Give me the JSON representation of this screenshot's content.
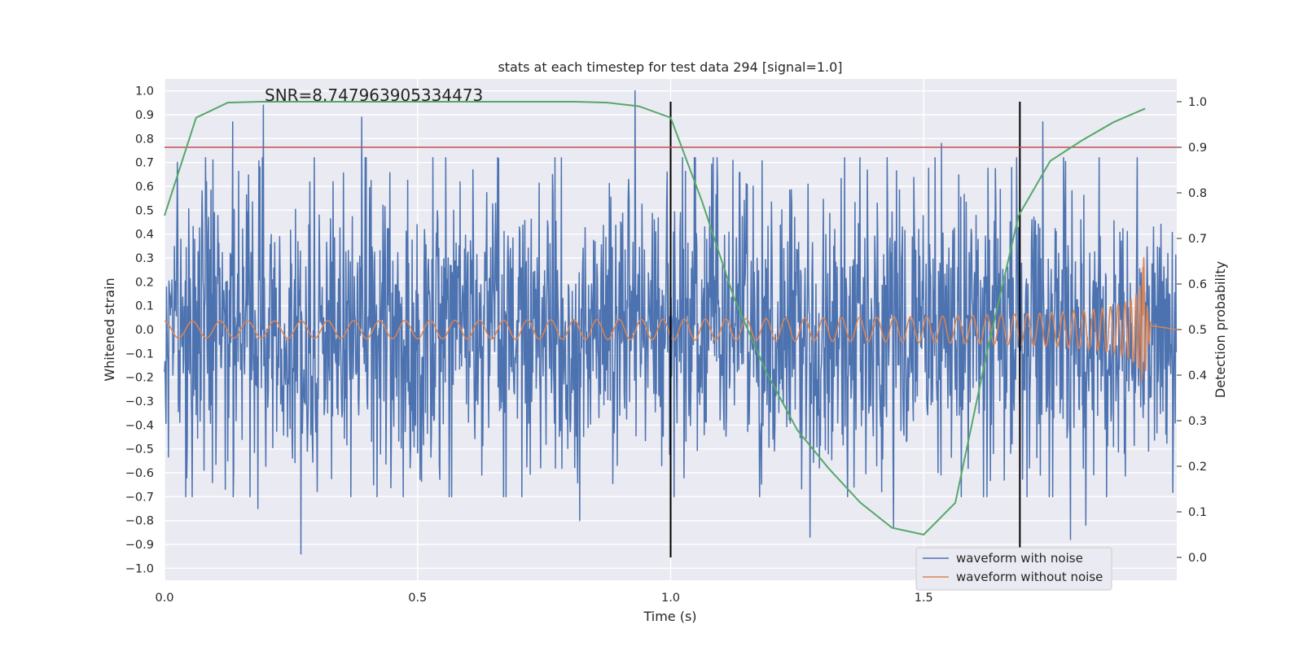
{
  "chart_data": {
    "type": "line",
    "title": "stats at each timestep for test data 294 [signal=1.0]",
    "annotation": "SNR=8.747963905334473",
    "xlabel": "Time (s)",
    "ylabel_left": "Whitened strain",
    "ylabel_right": "Detection probability",
    "xlim": [
      0.0,
      2.0
    ],
    "ylim_left": [
      -1.05,
      1.05
    ],
    "ylim_right": [
      -0.05,
      1.05
    ],
    "x_ticks": [
      "0.0",
      "0.5",
      "1.0",
      "1.5"
    ],
    "y_ticks_left": [
      "1.0",
      "0.9",
      "0.8",
      "0.7",
      "0.6",
      "0.5",
      "0.4",
      "0.3",
      "0.2",
      "0.1",
      "0.0",
      "−0.1",
      "−0.2",
      "−0.3",
      "−0.4",
      "−0.5",
      "−0.6",
      "−0.7",
      "−0.8",
      "−0.9",
      "−1.0"
    ],
    "y_ticks_right": [
      "1.0",
      "0.9",
      "0.8",
      "0.7",
      "0.6",
      "0.5",
      "0.4",
      "0.3",
      "0.2",
      "0.1",
      "0.0"
    ],
    "grid": true,
    "legend_position": "bottom-right",
    "threshold_line": {
      "axis": "right",
      "value": 0.9,
      "color": "#c44e52"
    },
    "vertical_lines": [
      {
        "x": 1.0,
        "color": "#000000"
      },
      {
        "x": 1.69,
        "color": "#000000"
      }
    ],
    "series": [
      {
        "name": "waveform with noise",
        "axis": "left",
        "color": "#4c72b0",
        "kind": "noise",
        "x_range": [
          0.0,
          1.999
        ],
        "sample_count": 2048,
        "spread": 0.3,
        "peaks": [
          {
            "x": 0.135,
            "y": 0.87
          },
          {
            "x": 0.195,
            "y": 0.94
          },
          {
            "x": 0.39,
            "y": 0.89
          },
          {
            "x": 0.93,
            "y": 1.0
          },
          {
            "x": 1.535,
            "y": 0.78
          },
          {
            "x": 1.735,
            "y": 0.87
          },
          {
            "x": 0.27,
            "y": -0.94
          },
          {
            "x": 1.275,
            "y": -0.87
          },
          {
            "x": 1.79,
            "y": -0.88
          },
          {
            "x": 0.185,
            "y": -0.75
          },
          {
            "x": 0.82,
            "y": -0.8
          },
          {
            "x": 1.44,
            "y": -0.83
          },
          {
            "x": 1.82,
            "y": -0.82
          }
        ]
      },
      {
        "name": "waveform without noise",
        "axis": "left",
        "color": "#dd8452",
        "kind": "chirp",
        "x_range": [
          0.0,
          1.95
        ],
        "merger_time": 1.935,
        "start_amplitude": 0.035,
        "peak_amplitude": 0.32,
        "start_frequency_hz": 18
      },
      {
        "name": "Detection probability",
        "axis": "right",
        "color": "#55a868",
        "x": [
          0.0,
          0.0625,
          0.125,
          0.1875,
          0.25,
          0.3125,
          0.375,
          0.4375,
          0.5,
          0.5625,
          0.625,
          0.6875,
          0.75,
          0.8125,
          0.875,
          0.9375,
          1.0,
          1.0625,
          1.125,
          1.1875,
          1.25,
          1.3125,
          1.375,
          1.4375,
          1.5,
          1.5625,
          1.625,
          1.6875,
          1.75,
          1.8125,
          1.875,
          1.9375
        ],
        "values": [
          0.75,
          0.965,
          0.998,
          1.0,
          1.0,
          1.0,
          1.0,
          1.0,
          1.0,
          1.0,
          1.0,
          1.0,
          1.0,
          1.0,
          0.998,
          0.99,
          0.965,
          0.78,
          0.57,
          0.41,
          0.28,
          0.195,
          0.12,
          0.065,
          0.05,
          0.12,
          0.45,
          0.75,
          0.87,
          0.915,
          0.955,
          0.985
        ]
      }
    ]
  }
}
